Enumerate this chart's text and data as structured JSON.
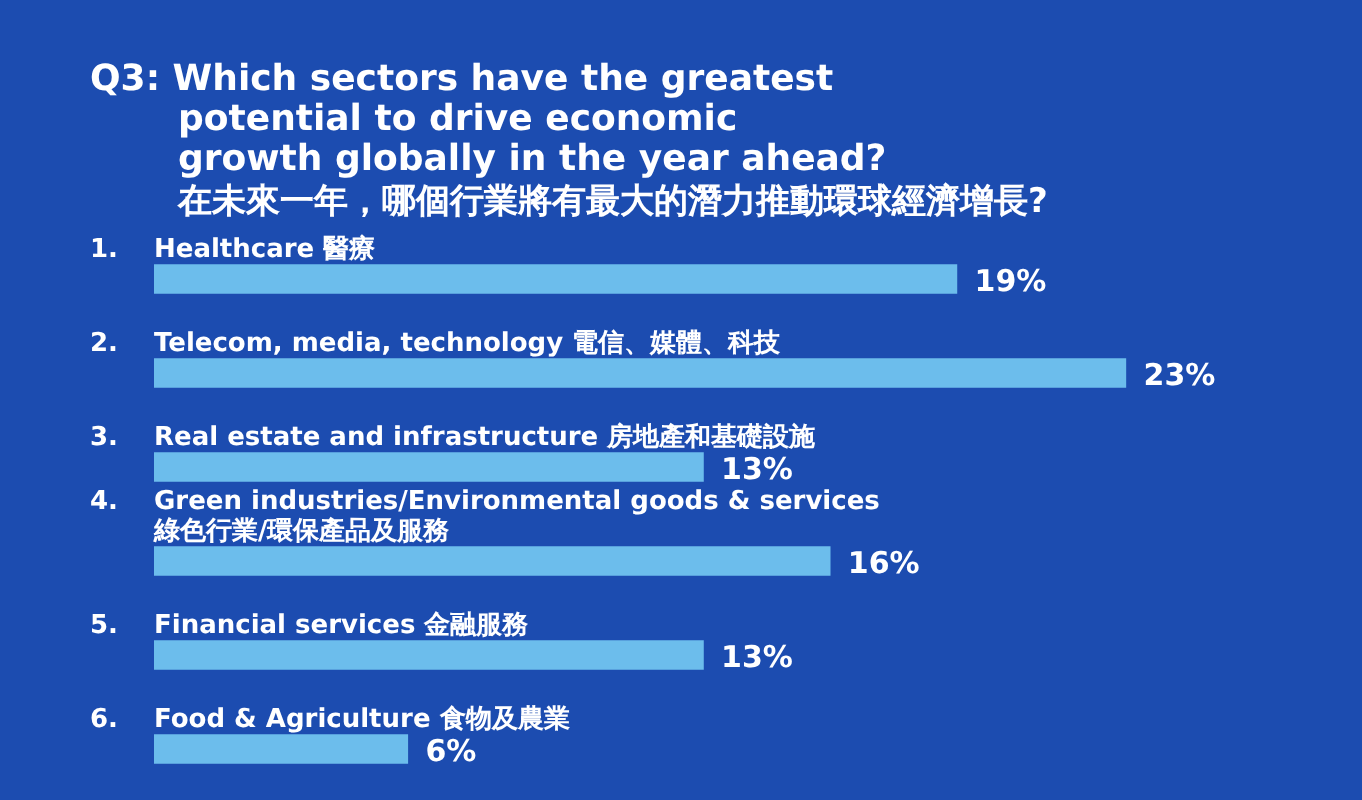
{
  "chart_data": {
    "type": "bar",
    "orientation": "horizontal",
    "title": "Q3: Which sectors have the greatest\npotential to drive economic\ngrowth globally in the year ahead?",
    "subtitle": "在未來一年，哪個行業將有最大的潛力推動環球經濟增長?",
    "categories": [
      "1. Healthcare 醫療",
      "2. Telecom, media, technology 電信、媒體、科技",
      "3. Real estate and infrastructure 房地產和基礎設施",
      "4. Green industries/Environmental goods & services\n綠色行業/環保產品及服務",
      "5. Financial services 金融服務",
      "6. Food & Agriculture 食物及農業"
    ],
    "values": [
      19,
      23,
      13,
      16,
      13,
      6
    ],
    "value_labels": [
      "19%",
      "23%",
      "13%",
      "16%",
      "13%",
      "6%"
    ],
    "color": "#6cbdec"
  }
}
